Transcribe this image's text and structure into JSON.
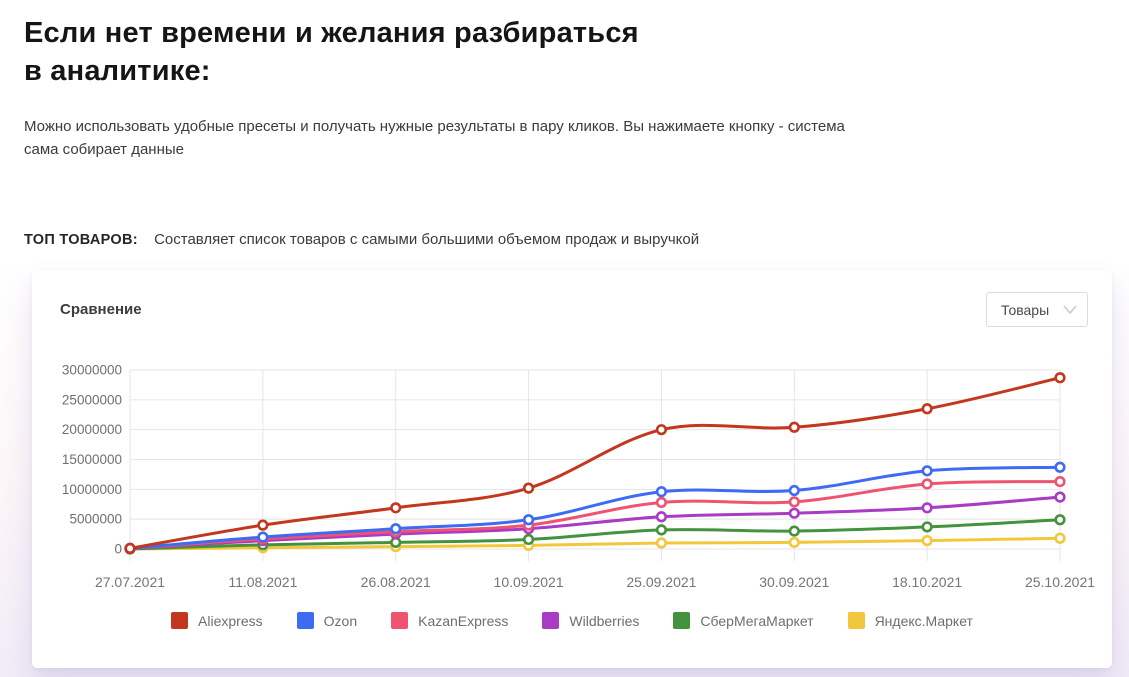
{
  "page": {
    "heading_line1": "Если нет времени и желания разбираться",
    "heading_line2": "в аналитике:",
    "subtitle": "Можно использовать удобные пресеты и получать нужные результаты в пару кликов. Вы нажимаете кнопку - система сама собирает данные",
    "preset_label": "ТОП ТОВАРОВ:",
    "preset_description": "Составляет список товаров с самыми большими объемом продаж и выручкой"
  },
  "card": {
    "title": "Сравнение",
    "dropdown": {
      "selected": "Товары",
      "icon": "chevron-down-icon"
    }
  },
  "chart_data": {
    "type": "line",
    "curve": "smooth",
    "marker": "open-circle",
    "grid": true,
    "legend_position": "bottom",
    "x": [
      "27.07.2021",
      "11.08.2021",
      "26.08.2021",
      "10.09.2021",
      "25.09.2021",
      "30.09.2021",
      "18.10.2021",
      "25.10.2021"
    ],
    "ylim": [
      0,
      30000000
    ],
    "ytick_step": 5000000,
    "yticks": [
      0,
      5000000,
      10000000,
      15000000,
      20000000,
      25000000,
      30000000
    ],
    "series": [
      {
        "name": "Aliexpress",
        "color": "#c2371d",
        "values": [
          100000,
          4000000,
          6900000,
          10200000,
          20000000,
          20400000,
          23500000,
          28700000
        ]
      },
      {
        "name": "Ozon",
        "color": "#3e6bf4",
        "values": [
          100000,
          2000000,
          3400000,
          4900000,
          9600000,
          9800000,
          13100000,
          13700000
        ]
      },
      {
        "name": "KazanExpress",
        "color": "#ef5370",
        "values": [
          100000,
          1700000,
          2900000,
          4000000,
          7800000,
          7900000,
          10900000,
          11300000
        ]
      },
      {
        "name": "Wildberries",
        "color": "#a93bc4",
        "values": [
          100000,
          1400000,
          2500000,
          3400000,
          5400000,
          6000000,
          6900000,
          8700000
        ]
      },
      {
        "name": "СберМегаМаркет",
        "color": "#43923d",
        "values": [
          0,
          700000,
          1100000,
          1600000,
          3200000,
          3000000,
          3700000,
          4900000
        ]
      },
      {
        "name": "Яндекс.Маркет",
        "color": "#f3c73c",
        "values": [
          0,
          200000,
          400000,
          600000,
          1000000,
          1100000,
          1400000,
          1800000
        ]
      }
    ],
    "axis_colors": {
      "grid": "#e5e5e5",
      "tick_text": "#757575"
    }
  }
}
